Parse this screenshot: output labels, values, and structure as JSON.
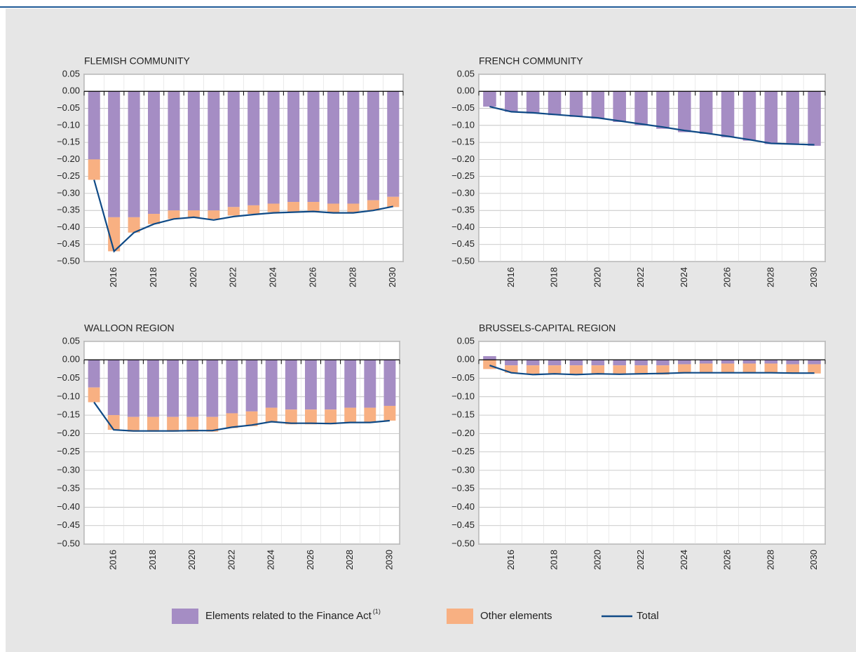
{
  "chart_data": [
    {
      "type": "bar",
      "title": "FLEMISH COMMUNITY",
      "categories": [
        null,
        "2016",
        null,
        "2018",
        null,
        "2020",
        null,
        "2022",
        null,
        "2024",
        null,
        "2026",
        null,
        "2028",
        null,
        "2030"
      ],
      "series": [
        {
          "values": [
            -0.2,
            -0.37,
            -0.37,
            -0.36,
            -0.35,
            -0.35,
            -0.35,
            -0.34,
            -0.335,
            -0.33,
            -0.325,
            -0.325,
            -0.33,
            -0.33,
            -0.32,
            -0.31
          ]
        },
        {
          "values": [
            -0.06,
            -0.1,
            -0.045,
            -0.03,
            -0.025,
            -0.02,
            -0.025,
            -0.025,
            -0.025,
            -0.025,
            -0.03,
            -0.03,
            -0.025,
            -0.025,
            -0.03,
            -0.03
          ]
        },
        {
          "values": [
            -0.26,
            -0.47,
            -0.415,
            -0.39,
            -0.375,
            -0.37,
            -0.378,
            -0.368,
            -0.362,
            -0.357,
            -0.355,
            -0.353,
            -0.357,
            -0.357,
            -0.35,
            -0.338
          ]
        }
      ],
      "ylim": [
        -0.5,
        0.05
      ],
      "yticks": [
        {
          "value": 0.05,
          "label": "0.05"
        },
        {
          "value": 0,
          "label": "0.00"
        },
        {
          "value": -0.05,
          "label": "−0.05"
        },
        {
          "value": -0.1,
          "label": "−0.10"
        },
        {
          "value": -0.15,
          "label": "−0.15"
        },
        {
          "value": -0.2,
          "label": "−0.20"
        },
        {
          "value": -0.25,
          "label": "−0.25"
        },
        {
          "value": -0.3,
          "label": "−0.30"
        },
        {
          "value": -0.35,
          "label": "−0.35"
        },
        {
          "value": -0.4,
          "label": "−0.40"
        },
        {
          "value": -0.45,
          "label": "−0.45"
        },
        {
          "value": -0.5,
          "label": "−0.50"
        }
      ]
    },
    {
      "type": "bar",
      "title": "FRENCH COMMUNITY",
      "categories": [
        null,
        "2016",
        null,
        "2018",
        null,
        "2020",
        null,
        "2022",
        null,
        "2024",
        null,
        "2026",
        null,
        "2028",
        null,
        "2030"
      ],
      "series": [
        {
          "values": [
            -0.045,
            -0.06,
            -0.065,
            -0.07,
            -0.075,
            -0.08,
            -0.09,
            -0.1,
            -0.11,
            -0.12,
            -0.125,
            -0.135,
            -0.145,
            -0.155,
            -0.155,
            -0.16
          ]
        },
        {
          "values": [
            0,
            0,
            0,
            0,
            0,
            0,
            0,
            0,
            0,
            0,
            0,
            0,
            0,
            0,
            0,
            0
          ]
        },
        {
          "values": [
            -0.045,
            -0.06,
            -0.063,
            -0.068,
            -0.073,
            -0.078,
            -0.087,
            -0.096,
            -0.105,
            -0.115,
            -0.123,
            -0.132,
            -0.142,
            -0.153,
            -0.155,
            -0.157
          ]
        }
      ],
      "ylim": [
        -0.5,
        0.05
      ],
      "yticks": [
        {
          "value": 0.05,
          "label": "0.05"
        },
        {
          "value": 0,
          "label": "0.00"
        },
        {
          "value": -0.05,
          "label": "−0.05"
        },
        {
          "value": -0.1,
          "label": "−0.10"
        },
        {
          "value": -0.15,
          "label": "−0.15"
        },
        {
          "value": -0.2,
          "label": "−0.20"
        },
        {
          "value": -0.25,
          "label": "−0.25"
        },
        {
          "value": -0.3,
          "label": "−0.30"
        },
        {
          "value": -0.35,
          "label": "−0.35"
        },
        {
          "value": -0.4,
          "label": "−0.40"
        },
        {
          "value": -0.45,
          "label": "−0.45"
        },
        {
          "value": -0.5,
          "label": "−0.50"
        }
      ]
    },
    {
      "type": "bar",
      "title": "WALLOON REGION",
      "categories": [
        null,
        "2016",
        null,
        "2018",
        null,
        "2020",
        null,
        "2022",
        null,
        "2024",
        null,
        "2026",
        null,
        "2028",
        null,
        "2030"
      ],
      "series": [
        {
          "values": [
            -0.075,
            -0.15,
            -0.155,
            -0.155,
            -0.155,
            -0.155,
            -0.155,
            -0.145,
            -0.14,
            -0.13,
            -0.135,
            -0.135,
            -0.135,
            -0.13,
            -0.13,
            -0.125
          ]
        },
        {
          "values": [
            -0.04,
            -0.04,
            -0.04,
            -0.04,
            -0.04,
            -0.04,
            -0.04,
            -0.04,
            -0.04,
            -0.04,
            -0.04,
            -0.04,
            -0.04,
            -0.04,
            -0.04,
            -0.04
          ]
        },
        {
          "values": [
            -0.115,
            -0.19,
            -0.193,
            -0.193,
            -0.193,
            -0.192,
            -0.192,
            -0.183,
            -0.177,
            -0.168,
            -0.172,
            -0.172,
            -0.173,
            -0.17,
            -0.17,
            -0.165
          ]
        }
      ],
      "ylim": [
        -0.5,
        0.05
      ],
      "yticks": [
        {
          "value": 0.05,
          "label": "0.05"
        },
        {
          "value": 0,
          "label": "0.00"
        },
        {
          "value": -0.05,
          "label": "−0.05"
        },
        {
          "value": -0.1,
          "label": "−0.10"
        },
        {
          "value": -0.15,
          "label": "−0.15"
        },
        {
          "value": -0.2,
          "label": "−0.20"
        },
        {
          "value": -0.25,
          "label": "−0.25"
        },
        {
          "value": -0.3,
          "label": "−0.30"
        },
        {
          "value": -0.35,
          "label": "−0.35"
        },
        {
          "value": -0.4,
          "label": "−0.40"
        },
        {
          "value": -0.45,
          "label": "−0.45"
        },
        {
          "value": -0.5,
          "label": "−0.50"
        }
      ]
    },
    {
      "type": "bar",
      "title": "BRUSSELS-CAPITAL REGION",
      "categories": [
        null,
        "2016",
        null,
        "2018",
        null,
        "2020",
        null,
        "2022",
        null,
        "2024",
        null,
        "2026",
        null,
        "2028",
        null,
        "2030"
      ],
      "series": [
        {
          "values": [
            0.01,
            -0.015,
            -0.015,
            -0.015,
            -0.015,
            -0.015,
            -0.015,
            -0.015,
            -0.015,
            -0.012,
            -0.01,
            -0.01,
            -0.01,
            -0.01,
            -0.012,
            -0.012
          ]
        },
        {
          "values": [
            -0.025,
            -0.02,
            -0.025,
            -0.025,
            -0.025,
            -0.025,
            -0.025,
            -0.025,
            -0.025,
            -0.025,
            -0.025,
            -0.025,
            -0.025,
            -0.025,
            -0.025,
            -0.025
          ]
        },
        {
          "values": [
            -0.015,
            -0.035,
            -0.04,
            -0.038,
            -0.04,
            -0.038,
            -0.039,
            -0.038,
            -0.037,
            -0.035,
            -0.035,
            -0.035,
            -0.035,
            -0.035,
            -0.036,
            -0.036
          ]
        }
      ],
      "ylim": [
        -0.5,
        0.05
      ],
      "yticks": [
        {
          "value": 0.05,
          "label": "0.05"
        },
        {
          "value": 0,
          "label": "0.00"
        },
        {
          "value": -0.05,
          "label": "−0.05"
        },
        {
          "value": -0.1,
          "label": "−0.10"
        },
        {
          "value": -0.15,
          "label": "−0.15"
        },
        {
          "value": -0.2,
          "label": "−0.20"
        },
        {
          "value": -0.25,
          "label": "−0.25"
        },
        {
          "value": -0.3,
          "label": "−0.30"
        },
        {
          "value": -0.35,
          "label": "−0.35"
        },
        {
          "value": -0.4,
          "label": "−0.40"
        },
        {
          "value": -0.45,
          "label": "−0.45"
        },
        {
          "value": -0.5,
          "label": "−0.50"
        }
      ]
    }
  ],
  "legend": [
    {
      "name": "Elements related to the Finance Act",
      "note": "(1)",
      "type": "bar",
      "color": "#a58dc4"
    },
    {
      "name": "Other elements",
      "type": "bar",
      "color": "#f8b082"
    },
    {
      "name": "Total",
      "type": "line",
      "color": "#0f4a86"
    }
  ]
}
